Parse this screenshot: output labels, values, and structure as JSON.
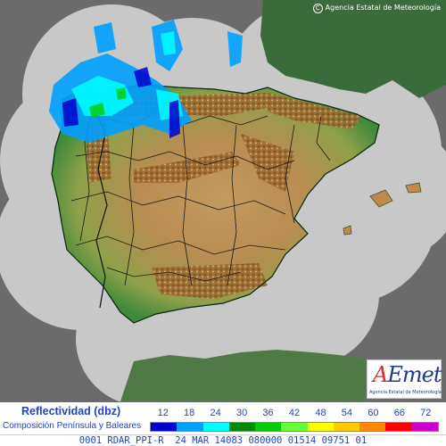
{
  "copyright": "Agencia Estatal de Meteorología",
  "logo": {
    "word_first": "A",
    "word_rest": "Emet",
    "subtitle": "Agencia Estatal de Meteorología"
  },
  "legend": {
    "title": "Reflectividad (dbz)",
    "subtitle": "Composición Península y Baleares",
    "labels": [
      "12",
      "18",
      "24",
      "30",
      "36",
      "42",
      "48",
      "54",
      "60",
      "66",
      "72"
    ],
    "colors": [
      "#0000cc",
      "#00a0ff",
      "#00ffff",
      "#008800",
      "#00cc00",
      "#66ff33",
      "#ffff00",
      "#ffcc00",
      "#ff8800",
      "#ff0000",
      "#cc00cc"
    ]
  },
  "status_line": "0001 RDAR_PPI-R  24 MAR 14083 080000 01514 09751 01",
  "map_colors": {
    "sea": "#6b6b6b",
    "radar_coverage": "#c8c8c8",
    "land_outside": "#3a5a3a",
    "coast_green": "#3f8a3a",
    "plateau": "#c9a46a",
    "mountains": "#8a5a2a",
    "borders": "#1a1a1a"
  }
}
